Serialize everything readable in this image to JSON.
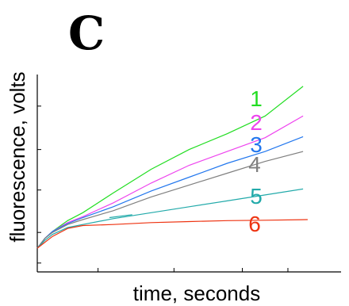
{
  "panel_label": "C",
  "chart_data": {
    "type": "line",
    "title": "",
    "xlabel": "time, seconds",
    "ylabel": "fluorescence, volts",
    "tick_labels_shown": false,
    "xlim": [
      0,
      400
    ],
    "ylim": [
      0,
      1
    ],
    "x_ticks": [
      80,
      180,
      270,
      330
    ],
    "y_ticks": [
      0.045,
      0.2,
      0.415,
      0.62,
      0.84
    ],
    "grid": false,
    "legend": "inline labels at right end of lines",
    "series": [
      {
        "name": "1",
        "color": "#22dd22",
        "x": [
          0,
          10,
          20,
          40,
          60,
          100,
          150,
          200,
          250,
          300,
          350
        ],
        "y": [
          0.12,
          0.17,
          0.205,
          0.26,
          0.3,
          0.4,
          0.52,
          0.62,
          0.7,
          0.79,
          0.94
        ]
      },
      {
        "name": "2",
        "color": "#ee44ee",
        "x": [
          0,
          10,
          20,
          40,
          60,
          100,
          150,
          200,
          250,
          300,
          350
        ],
        "y": [
          0.12,
          0.17,
          0.205,
          0.25,
          0.28,
          0.35,
          0.45,
          0.54,
          0.61,
          0.68,
          0.79
        ]
      },
      {
        "name": "3",
        "color": "#2277ee",
        "x": [
          0,
          10,
          20,
          40,
          60,
          100,
          150,
          200,
          250,
          300,
          350
        ],
        "y": [
          0.12,
          0.17,
          0.205,
          0.245,
          0.275,
          0.33,
          0.41,
          0.48,
          0.55,
          0.61,
          0.685
        ]
      },
      {
        "name": "4",
        "color": "#808080",
        "x": [
          0,
          10,
          20,
          40,
          60,
          100,
          150,
          200,
          250,
          300,
          350
        ],
        "y": [
          0.12,
          0.17,
          0.2,
          0.24,
          0.265,
          0.31,
          0.38,
          0.44,
          0.5,
          0.56,
          0.61
        ]
      },
      {
        "name": "5",
        "color": "#22aaaa",
        "x": [
          0,
          10,
          20,
          40,
          60,
          100,
          150,
          200,
          250,
          300,
          350
        ],
        "y": [
          0.12,
          0.16,
          0.19,
          0.225,
          0.24,
          0.27,
          0.3,
          0.33,
          0.36,
          0.39,
          0.42
        ]
      },
      {
        "name": "6",
        "color": "#ee3311",
        "x": [
          0,
          10,
          20,
          40,
          60,
          100,
          150,
          200,
          250,
          300,
          356
        ],
        "y": [
          0.12,
          0.15,
          0.18,
          0.22,
          0.235,
          0.24,
          0.25,
          0.255,
          0.26,
          0.262,
          0.265
        ]
      }
    ],
    "annotations": [
      {
        "color": "#22aaaa",
        "x": [
          95,
          125
        ],
        "y": [
          0.275,
          0.29
        ]
      }
    ]
  }
}
